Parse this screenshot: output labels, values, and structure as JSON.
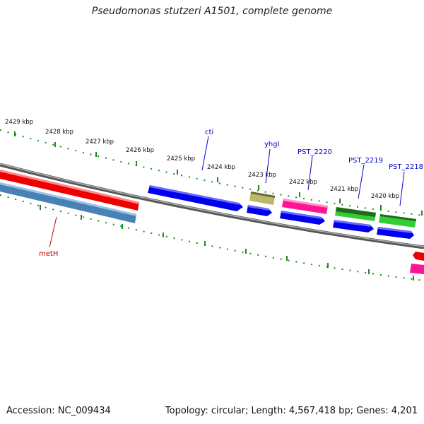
{
  "title": "Pseudomonas stutzeri A1501, complete genome",
  "footer": {
    "accession": "Accession: NC_009434",
    "summary": "Topology: circular; Length: 4,567,418 bp; Genes: 4,201"
  },
  "kbp_labels": [
    "2429 kbp",
    "2428 kbp",
    "2427 kbp",
    "2426 kbp",
    "2425 kbp",
    "2424 kbp",
    "2423 kbp",
    "2422 kbp",
    "2421 kbp",
    "2420 kbp"
  ],
  "gene_labels": {
    "cti": "cti",
    "yhgI": "yhgI",
    "pst2220": "PST_2220",
    "pst2219": "PST_2219",
    "pst2218": "PST_2218",
    "metH": "metH"
  },
  "colors": {
    "backbone": "#777777",
    "tick": "#1a8a1a",
    "forward_label": "#0000cc",
    "reverse_label": "#cc0000",
    "red": "#ee0000",
    "blue": "#0000ee",
    "steelblue": "#4682b4",
    "khaki": "#bdb76b",
    "pink": "#ff1493",
    "darkgreen": "#228b22",
    "green": "#32cd32"
  }
}
